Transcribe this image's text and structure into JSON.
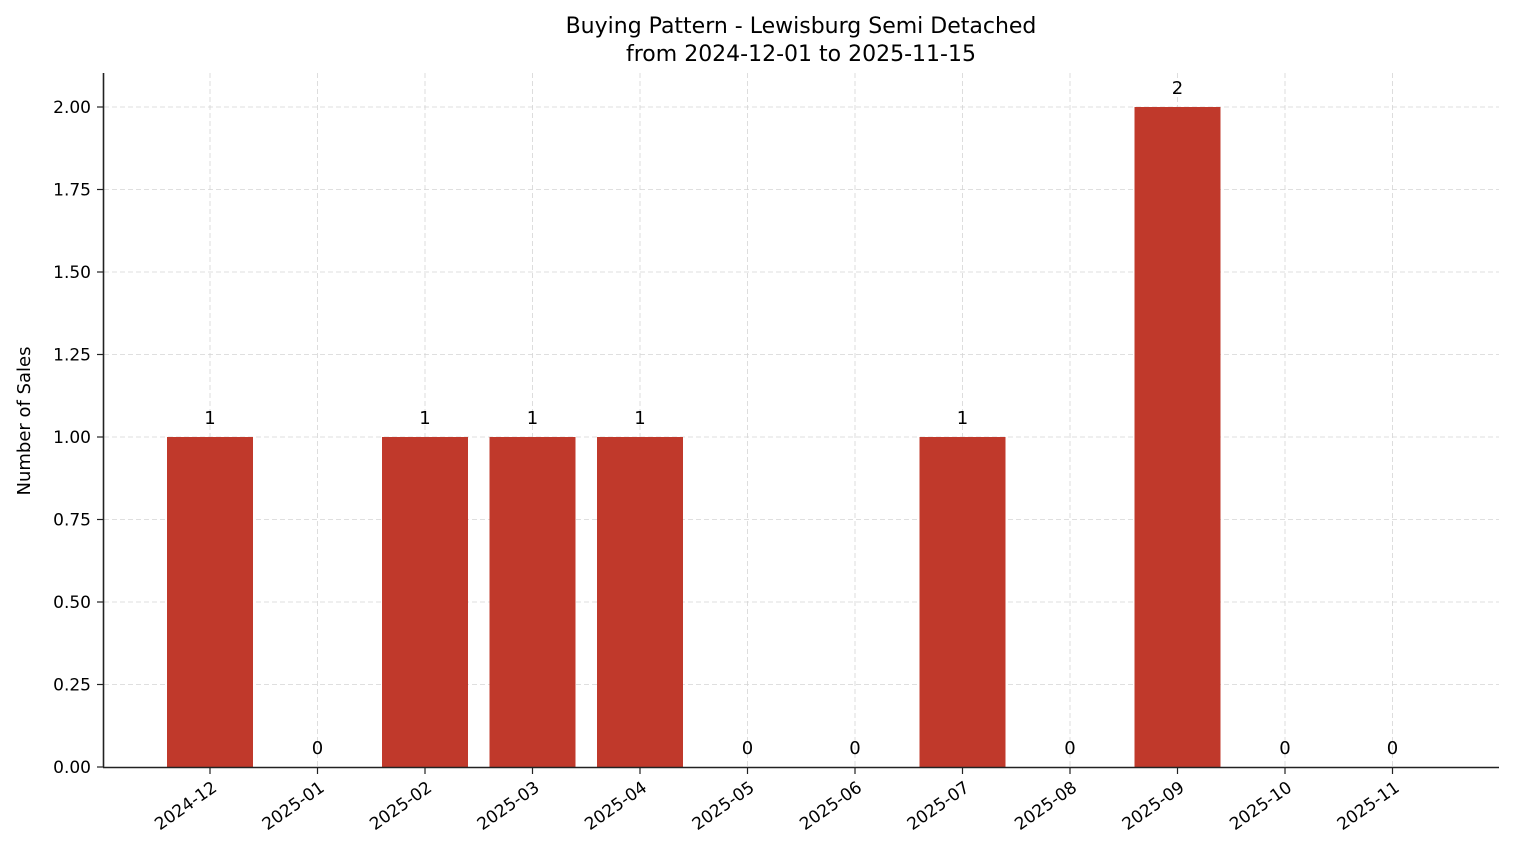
{
  "chart_data": {
    "type": "bar",
    "title": "Buying Pattern - Lewisburg Semi Detached",
    "subtitle": "from 2024-12-01 to 2025-11-15",
    "xlabel": "",
    "ylabel": "Number of Sales",
    "categories": [
      "2024-12",
      "2025-01",
      "2025-02",
      "2025-03",
      "2025-04",
      "2025-05",
      "2025-06",
      "2025-07",
      "2025-08",
      "2025-09",
      "2025-10",
      "2025-11"
    ],
    "values": [
      1,
      0,
      1,
      1,
      1,
      0,
      0,
      1,
      0,
      2,
      0,
      0
    ],
    "data_labels": [
      "1",
      "0",
      "1",
      "1",
      "1",
      "0",
      "0",
      "1",
      "0",
      "2",
      "0",
      "0"
    ],
    "ylim": [
      0,
      2.1
    ],
    "yticks": [
      "0.00",
      "0.25",
      "0.50",
      "0.75",
      "1.00",
      "1.25",
      "1.50",
      "1.75",
      "2.00"
    ],
    "grid": true,
    "bar_color": "#c0392b",
    "legend": null
  }
}
